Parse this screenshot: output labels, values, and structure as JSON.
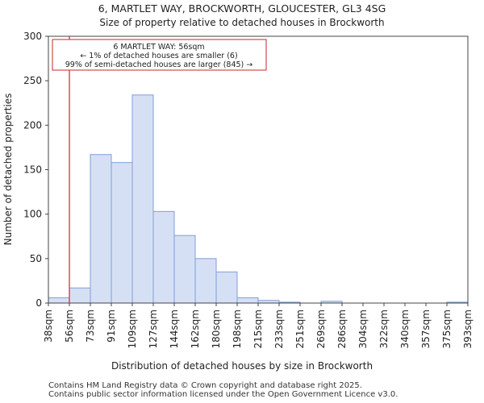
{
  "chart_data": {
    "type": "bar",
    "title": "6, MARTLET WAY, BROCKWORTH, GLOUCESTER, GL3 4SG",
    "subtitle": "Size of property relative to detached houses in Brockworth",
    "xlabel": "Distribution of detached houses by size in Brockworth",
    "ylabel": "Number of detached properties",
    "ylim": [
      0,
      300
    ],
    "yticks": [
      0,
      50,
      100,
      150,
      200,
      250,
      300
    ],
    "bin_edges": [
      "38sqm",
      "56sqm",
      "73sqm",
      "91sqm",
      "109sqm",
      "127sqm",
      "144sqm",
      "162sqm",
      "180sqm",
      "198sqm",
      "215sqm",
      "233sqm",
      "251sqm",
      "269sqm",
      "286sqm",
      "304sqm",
      "322sqm",
      "340sqm",
      "357sqm",
      "375sqm",
      "393sqm"
    ],
    "values": [
      6,
      17,
      167,
      158,
      234,
      103,
      76,
      50,
      35,
      6,
      3,
      1,
      0,
      2,
      0,
      0,
      0,
      0,
      0,
      1
    ],
    "bar_color": "#d6e0f5",
    "bar_edge_color": "#7f9ed6",
    "marker": {
      "bin_index": 1,
      "color": "#c62828",
      "lines": [
        "6 MARTLET WAY: 56sqm",
        "← 1% of detached houses are smaller (6)",
        "99% of semi-detached houses are larger (845) →"
      ]
    }
  },
  "footer": {
    "line1": "Contains HM Land Registry data © Crown copyright and database right 2025.",
    "line2": "Contains public sector information licensed under the Open Government Licence v3.0."
  }
}
